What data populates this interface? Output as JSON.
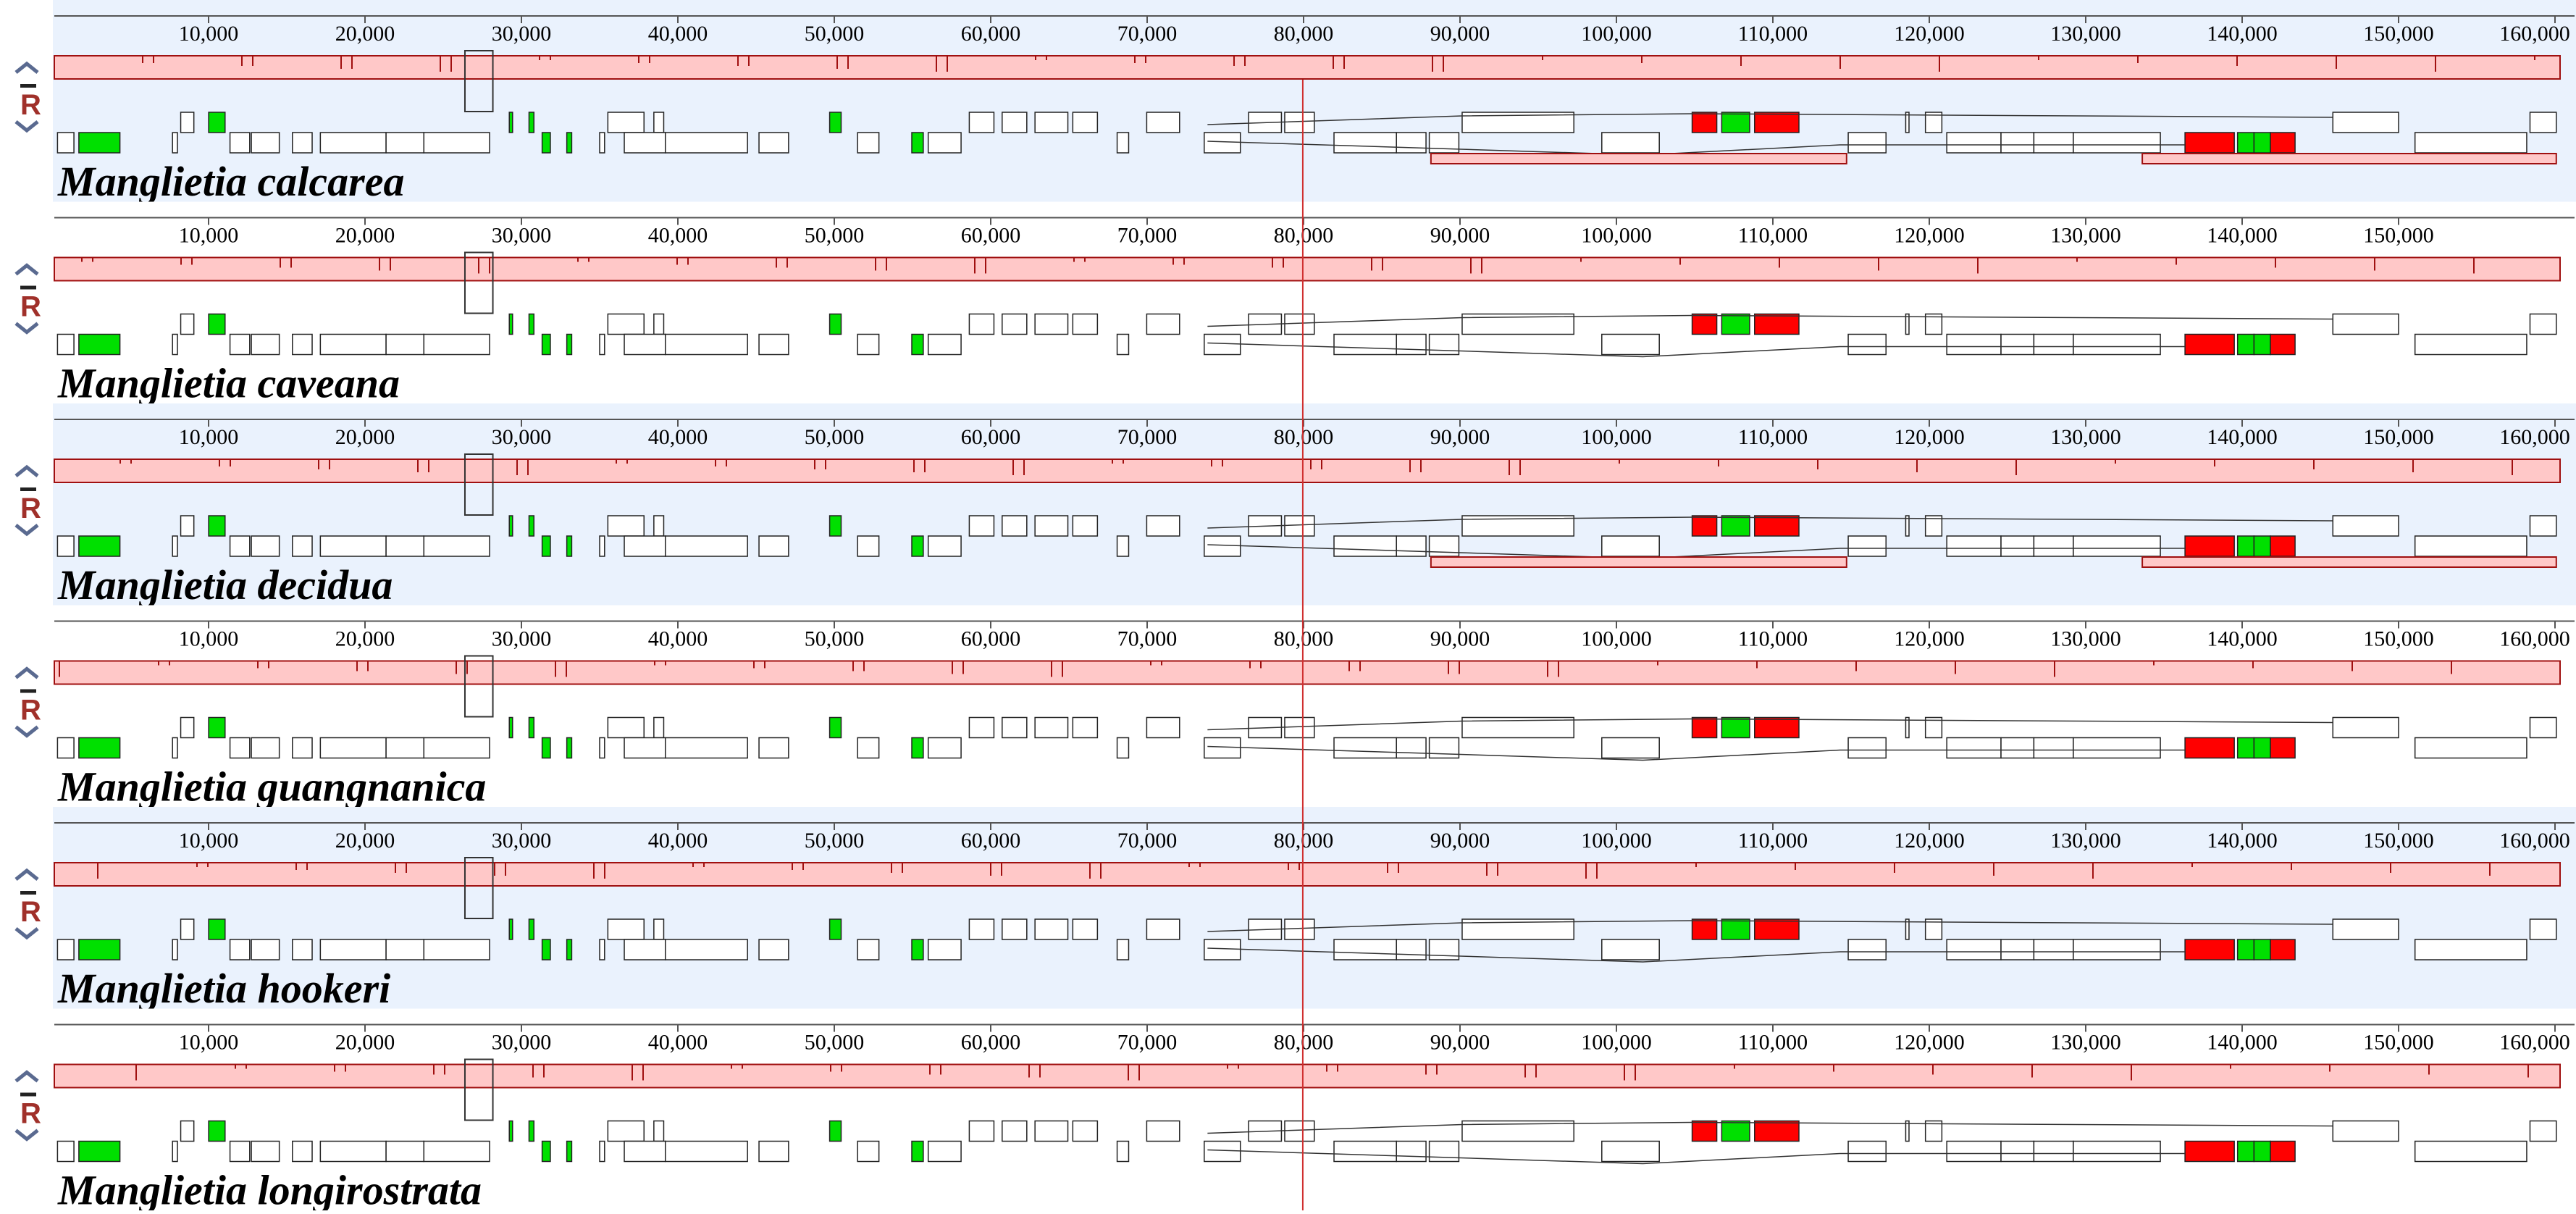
{
  "control_label": "R",
  "tracks": [
    {
      "name": "Manglietia calcarea",
      "ticks": [
        {
          "value": 10000,
          "label": "10,000"
        },
        {
          "value": 20000,
          "label": "20,000"
        },
        {
          "value": 30000,
          "label": "30,000"
        },
        {
          "value": 40000,
          "label": "40,000"
        },
        {
          "value": 50000,
          "label": "50,000"
        },
        {
          "value": 60000,
          "label": "60,000"
        },
        {
          "value": 70000,
          "label": "70,000"
        },
        {
          "value": 80000,
          "label": "80,000"
        },
        {
          "value": 90000,
          "label": "90,000"
        },
        {
          "value": 100000,
          "label": "100,000"
        },
        {
          "value": 110000,
          "label": "110,000"
        },
        {
          "value": 120000,
          "label": "120,000"
        },
        {
          "value": 130000,
          "label": "130,000"
        },
        {
          "value": 140000,
          "label": "140,000"
        },
        {
          "value": 150000,
          "label": "150,000"
        },
        {
          "value": 160000,
          "label": "160,000"
        }
      ]
    },
    {
      "name": "Manglietia caveana",
      "ticks": [
        {
          "value": 10000,
          "label": "10,000"
        },
        {
          "value": 20000,
          "label": "20,000"
        },
        {
          "value": 30000,
          "label": "30,000"
        },
        {
          "value": 40000,
          "label": "40,000"
        },
        {
          "value": 50000,
          "label": "50,000"
        },
        {
          "value": 60000,
          "label": "60,000"
        },
        {
          "value": 70000,
          "label": "70,000"
        },
        {
          "value": 80000,
          "label": "80,000"
        },
        {
          "value": 90000,
          "label": "90,000"
        },
        {
          "value": 100000,
          "label": "100,000"
        },
        {
          "value": 110000,
          "label": "110,000"
        },
        {
          "value": 120000,
          "label": "120,000"
        },
        {
          "value": 130000,
          "label": "130,000"
        },
        {
          "value": 140000,
          "label": "140,000"
        },
        {
          "value": 150000,
          "label": "150,000"
        }
      ]
    },
    {
      "name": "Manglietia decidua",
      "ticks": [
        {
          "value": 10000,
          "label": "10,000"
        },
        {
          "value": 20000,
          "label": "20,000"
        },
        {
          "value": 30000,
          "label": "30,000"
        },
        {
          "value": 40000,
          "label": "40,000"
        },
        {
          "value": 50000,
          "label": "50,000"
        },
        {
          "value": 60000,
          "label": "60,000"
        },
        {
          "value": 70000,
          "label": "70,000"
        },
        {
          "value": 80000,
          "label": "80,000"
        },
        {
          "value": 90000,
          "label": "90,000"
        },
        {
          "value": 100000,
          "label": "100,000"
        },
        {
          "value": 110000,
          "label": "110,000"
        },
        {
          "value": 120000,
          "label": "120,000"
        },
        {
          "value": 130000,
          "label": "130,000"
        },
        {
          "value": 140000,
          "label": "140,000"
        },
        {
          "value": 150000,
          "label": "150,000"
        },
        {
          "value": 160000,
          "label": "160,000"
        }
      ]
    },
    {
      "name": "Manglietia guangnanica",
      "ticks": [
        {
          "value": 10000,
          "label": "10,000"
        },
        {
          "value": 20000,
          "label": "20,000"
        },
        {
          "value": 30000,
          "label": "30,000"
        },
        {
          "value": 40000,
          "label": "40,000"
        },
        {
          "value": 50000,
          "label": "50,000"
        },
        {
          "value": 60000,
          "label": "60,000"
        },
        {
          "value": 70000,
          "label": "70,000"
        },
        {
          "value": 80000,
          "label": "80,000"
        },
        {
          "value": 90000,
          "label": "90,000"
        },
        {
          "value": 100000,
          "label": "100,000"
        },
        {
          "value": 110000,
          "label": "110,000"
        },
        {
          "value": 120000,
          "label": "120,000"
        },
        {
          "value": 130000,
          "label": "130,000"
        },
        {
          "value": 140000,
          "label": "140,000"
        },
        {
          "value": 150000,
          "label": "150,000"
        },
        {
          "value": 160000,
          "label": "160,000"
        }
      ]
    },
    {
      "name": "Manglietia hookeri",
      "ticks": [
        {
          "value": 10000,
          "label": "10,000"
        },
        {
          "value": 20000,
          "label": "20,000"
        },
        {
          "value": 30000,
          "label": "30,000"
        },
        {
          "value": 40000,
          "label": "40,000"
        },
        {
          "value": 50000,
          "label": "50,000"
        },
        {
          "value": 60000,
          "label": "60,000"
        },
        {
          "value": 70000,
          "label": "70,000"
        },
        {
          "value": 80000,
          "label": "80,000"
        },
        {
          "value": 90000,
          "label": "90,000"
        },
        {
          "value": 100000,
          "label": "100,000"
        },
        {
          "value": 110000,
          "label": "110,000"
        },
        {
          "value": 120000,
          "label": "120,000"
        },
        {
          "value": 130000,
          "label": "130,000"
        },
        {
          "value": 140000,
          "label": "140,000"
        },
        {
          "value": 150000,
          "label": "150,000"
        },
        {
          "value": 160000,
          "label": "160,000"
        }
      ]
    },
    {
      "name": "Manglietia longirostrata",
      "ticks": [
        {
          "value": 10000,
          "label": "10,000"
        },
        {
          "value": 20000,
          "label": "20,000"
        },
        {
          "value": 30000,
          "label": "30,000"
        },
        {
          "value": 40000,
          "label": "40,000"
        },
        {
          "value": 50000,
          "label": "50,000"
        },
        {
          "value": 60000,
          "label": "60,000"
        },
        {
          "value": 70000,
          "label": "70,000"
        },
        {
          "value": 80000,
          "label": "80,000"
        },
        {
          "value": 90000,
          "label": "90,000"
        },
        {
          "value": 100000,
          "label": "100,000"
        },
        {
          "value": 110000,
          "label": "110,000"
        },
        {
          "value": 120000,
          "label": "120,000"
        },
        {
          "value": 130000,
          "label": "130,000"
        },
        {
          "value": 140000,
          "label": "140,000"
        },
        {
          "value": 150000,
          "label": "150,000"
        },
        {
          "value": 160000,
          "label": "160,000"
        }
      ]
    }
  ]
}
